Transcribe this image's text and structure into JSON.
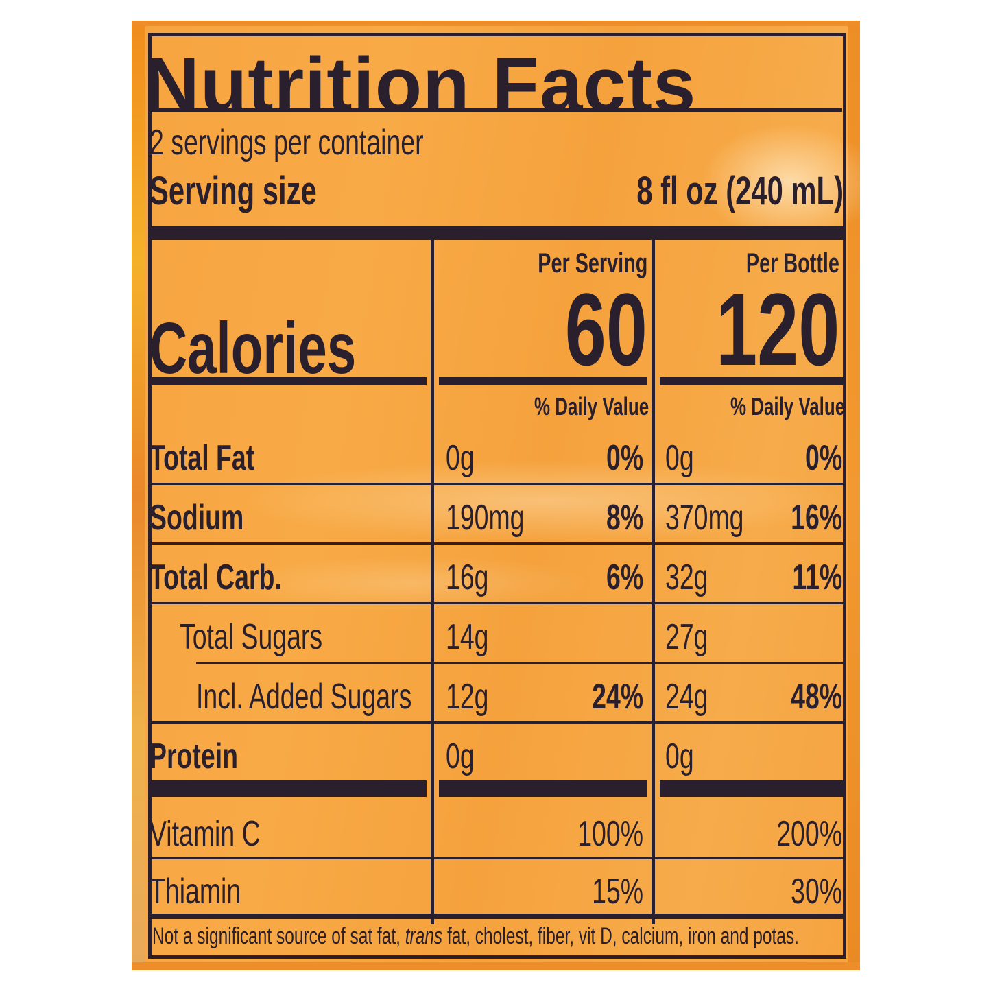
{
  "title": "Nutrition Facts",
  "servings_per_container": "2 servings per container",
  "serving_size": {
    "label": "Serving size",
    "value": "8 fl oz (240 mL)"
  },
  "columns": {
    "per_serving": "Per Serving",
    "per_bottle": "Per Bottle"
  },
  "calories": {
    "label": "Calories",
    "per_serving": "60",
    "per_bottle": "120"
  },
  "daily_value_header": "% Daily Value",
  "nutrients": [
    {
      "name": "Total Fat",
      "bold": true,
      "indent": 0,
      "s_amt": "0g",
      "s_dv": "0%",
      "b_amt": "0g",
      "b_dv": "0%"
    },
    {
      "name": "Sodium",
      "bold": true,
      "indent": 0,
      "s_amt": "190mg",
      "s_dv": "8%",
      "b_amt": "370mg",
      "b_dv": "16%"
    },
    {
      "name": "Total Carb.",
      "bold": true,
      "indent": 0,
      "s_amt": "16g",
      "s_dv": "6%",
      "b_amt": "32g",
      "b_dv": "11%"
    },
    {
      "name": "Total Sugars",
      "bold": false,
      "indent": 1,
      "s_amt": "14g",
      "s_dv": "",
      "b_amt": "27g",
      "b_dv": ""
    },
    {
      "name": "Incl. Added Sugars",
      "bold": false,
      "indent": 2,
      "s_amt": "12g",
      "s_dv": "24%",
      "b_amt": "24g",
      "b_dv": "48%"
    },
    {
      "name": "Protein",
      "bold": true,
      "indent": 0,
      "s_amt": "0g",
      "s_dv": "",
      "b_amt": "0g",
      "b_dv": ""
    }
  ],
  "vitamins": [
    {
      "name": "Vitamin C",
      "s_dv": "100%",
      "b_dv": "200%"
    },
    {
      "name": "Thiamin",
      "s_dv": "15%",
      "b_dv": "30%"
    }
  ],
  "footnote": {
    "part1": "Not a significant source of sat fat, ",
    "italic": "trans",
    "part2": " fat, cholest, fiber, vit D, calcium, iron and potas."
  },
  "colors": {
    "ink": "#2a1f2d",
    "label": "#f6a440"
  }
}
